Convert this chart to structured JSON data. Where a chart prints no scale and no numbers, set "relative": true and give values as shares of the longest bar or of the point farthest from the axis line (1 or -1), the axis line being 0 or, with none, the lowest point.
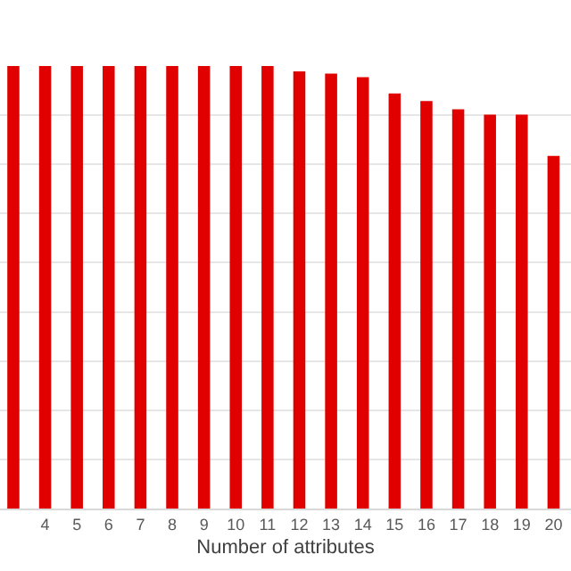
{
  "chart_data": {
    "type": "bar",
    "relative": true,
    "xlabel": "Number of attributes",
    "categories": [
      null,
      "4",
      "5",
      "6",
      "7",
      "8",
      "9",
      "10",
      "11",
      "12",
      "13",
      "14",
      "15",
      "16",
      "17",
      "18",
      "19",
      "20"
    ],
    "values": [
      1,
      1,
      1,
      1,
      1,
      1,
      1,
      1,
      1,
      0.988,
      0.983,
      0.975,
      0.938,
      0.921,
      0.902,
      0.89,
      0.89,
      0.797
    ],
    "color": "#e00000",
    "grid": "y"
  }
}
